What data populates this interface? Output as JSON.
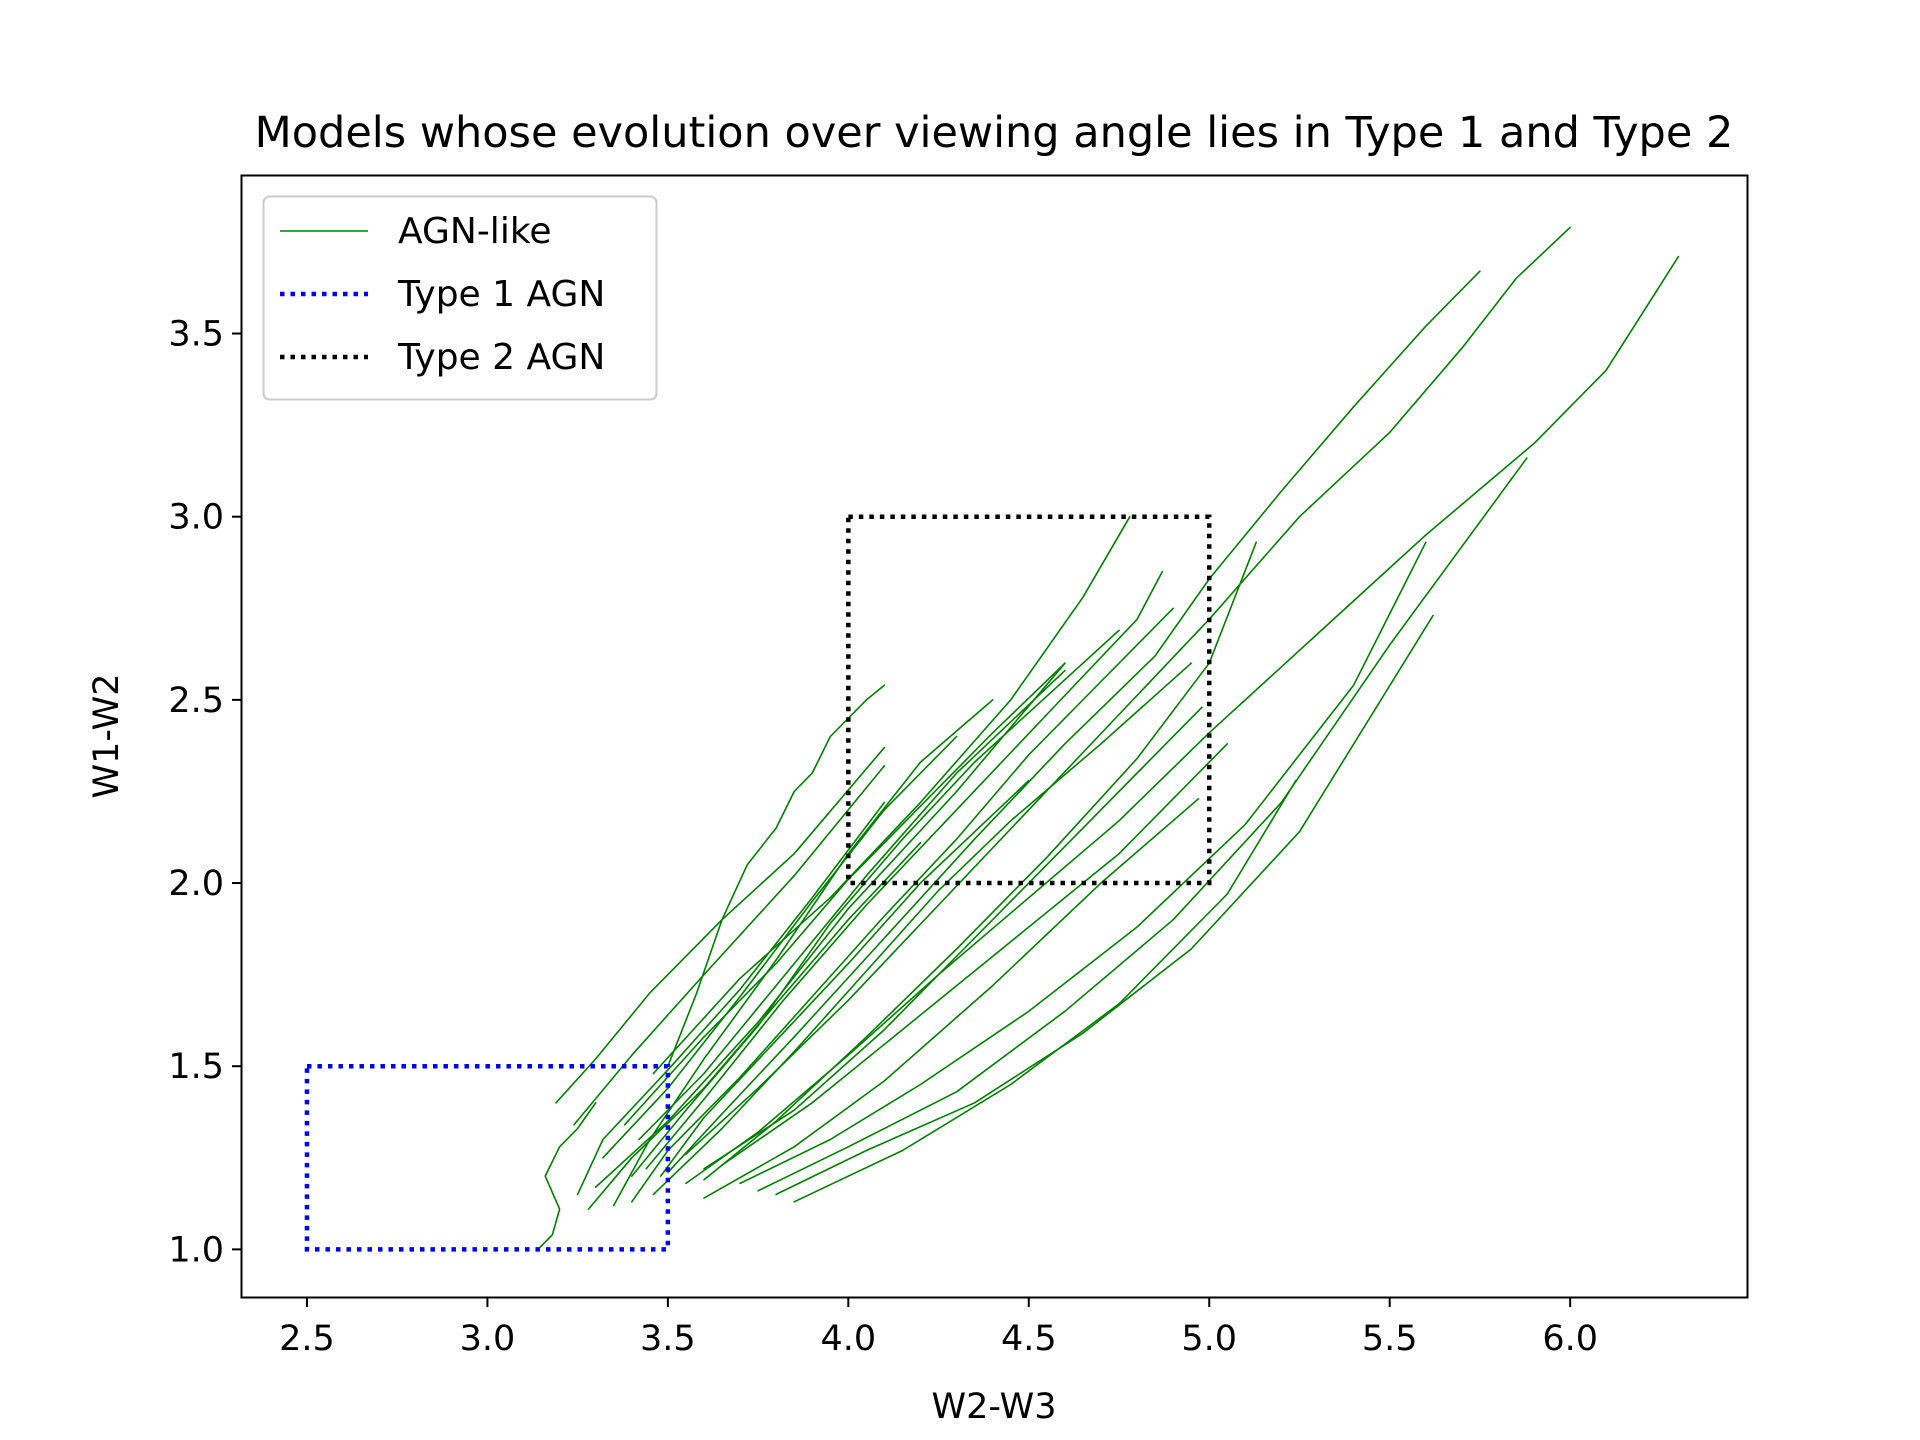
{
  "chart_data": {
    "type": "line",
    "title": "Models whose evolution over viewing angle lies in Type 1 and Type 2",
    "xlabel": "W2-W3",
    "ylabel": "W1-W2",
    "xlim": [
      2.32,
      6.49
    ],
    "ylim": [
      0.87,
      3.93
    ],
    "xticks": [
      2.5,
      3.0,
      3.5,
      4.0,
      4.5,
      5.0,
      5.5,
      6.0
    ],
    "xtick_labels": [
      "2.5",
      "3.0",
      "3.5",
      "4.0",
      "4.5",
      "5.0",
      "5.5",
      "6.0"
    ],
    "yticks": [
      1.0,
      1.5,
      2.0,
      2.5,
      3.0,
      3.5
    ],
    "ytick_labels": [
      "1.0",
      "1.5",
      "2.0",
      "2.5",
      "3.0",
      "3.5"
    ],
    "grid": false,
    "legend_position": "top-left",
    "legend": [
      {
        "label": "AGN-like",
        "color": "#008000",
        "style": "solid"
      },
      {
        "label": "Type 1 AGN",
        "color": "#0000ff",
        "style": "dotted"
      },
      {
        "label": "Type 2 AGN",
        "color": "#000000",
        "style": "dotted"
      }
    ],
    "regions": [
      {
        "name": "Type 1 AGN",
        "color": "#0000ff",
        "x0": 2.5,
        "x1": 3.5,
        "y0": 1.0,
        "y1": 1.5
      },
      {
        "name": "Type 2 AGN",
        "color": "#000000",
        "x0": 4.0,
        "x1": 5.0,
        "y0": 2.0,
        "y1": 3.0
      }
    ],
    "line_color": "#008000",
    "series": [
      {
        "x": [
          3.14,
          3.18,
          3.2,
          3.16,
          3.2,
          3.25,
          3.3
        ],
        "y": [
          1.0,
          1.04,
          1.11,
          1.2,
          1.28,
          1.33,
          1.4
        ]
      },
      {
        "x": [
          3.19,
          3.3,
          3.45,
          3.65,
          3.85,
          4.1
        ],
        "y": [
          1.4,
          1.52,
          1.7,
          1.9,
          2.08,
          2.37
        ]
      },
      {
        "x": [
          3.24,
          3.4,
          3.6,
          3.85,
          4.1
        ],
        "y": [
          1.34,
          1.53,
          1.75,
          2.02,
          2.32
        ]
      },
      {
        "x": [
          3.25,
          3.32,
          3.5,
          3.7,
          3.9,
          4.1
        ],
        "y": [
          1.15,
          1.3,
          1.49,
          1.71,
          1.96,
          2.22
        ]
      },
      {
        "x": [
          3.28,
          3.4,
          3.6,
          3.8,
          4.0,
          4.2
        ],
        "y": [
          1.11,
          1.25,
          1.44,
          1.67,
          1.9,
          2.11
        ]
      },
      {
        "x": [
          3.3,
          3.5,
          3.75,
          4.0,
          4.3,
          4.6
        ],
        "y": [
          1.17,
          1.35,
          1.62,
          1.93,
          2.25,
          2.6
        ]
      },
      {
        "x": [
          3.32,
          3.5,
          3.7,
          3.9,
          4.1,
          4.3
        ],
        "y": [
          1.25,
          1.44,
          1.69,
          1.95,
          2.2,
          2.4
        ]
      },
      {
        "x": [
          3.35,
          3.45,
          3.6,
          3.8,
          4.0,
          4.2,
          4.4
        ],
        "y": [
          1.12,
          1.3,
          1.52,
          1.79,
          2.08,
          2.33,
          2.5
        ]
      },
      {
        "x": [
          3.38,
          3.6,
          3.8,
          4.0,
          4.2,
          4.4,
          4.6
        ],
        "y": [
          1.34,
          1.58,
          1.78,
          2.01,
          2.21,
          2.41,
          2.6
        ]
      },
      {
        "x": [
          3.4,
          3.55,
          3.75,
          3.95,
          4.15,
          4.35,
          4.55,
          4.75
        ],
        "y": [
          1.2,
          1.38,
          1.61,
          1.89,
          2.12,
          2.33,
          2.51,
          2.69
        ]
      },
      {
        "x": [
          3.42,
          3.6,
          3.8,
          4.05,
          4.3,
          4.6
        ],
        "y": [
          1.3,
          1.48,
          1.72,
          2.02,
          2.3,
          2.58
        ]
      },
      {
        "x": [
          3.44,
          3.6,
          3.82,
          4.05,
          4.3,
          4.55,
          4.8,
          4.87
        ],
        "y": [
          1.22,
          1.41,
          1.68,
          1.94,
          2.2,
          2.46,
          2.72,
          2.85
        ]
      },
      {
        "x": [
          3.46,
          3.7,
          3.95,
          4.2,
          4.45,
          4.65,
          4.78
        ],
        "y": [
          1.48,
          1.74,
          1.96,
          2.22,
          2.5,
          2.78,
          3.0
        ]
      },
      {
        "x": [
          3.5,
          3.58,
          3.65,
          3.72,
          3.8,
          3.85,
          3.9,
          3.95,
          4.05,
          4.1
        ],
        "y": [
          1.5,
          1.7,
          1.9,
          2.05,
          2.15,
          2.25,
          2.3,
          2.4,
          2.5,
          2.54
        ]
      },
      {
        "x": [
          3.4,
          3.5,
          3.7,
          3.9,
          4.1,
          4.3,
          4.5,
          4.7,
          4.9
        ],
        "y": [
          1.13,
          1.27,
          1.47,
          1.69,
          1.91,
          2.12,
          2.35,
          2.55,
          2.75
        ]
      },
      {
        "x": [
          3.46,
          3.65,
          3.85,
          4.05,
          4.25,
          4.45,
          4.7,
          4.95
        ],
        "y": [
          1.15,
          1.33,
          1.54,
          1.76,
          1.98,
          2.17,
          2.38,
          2.6
        ]
      },
      {
        "x": [
          3.48,
          3.6,
          3.8,
          4.0,
          4.2,
          4.5
        ],
        "y": [
          1.2,
          1.36,
          1.57,
          1.78,
          2.0,
          2.28
        ]
      },
      {
        "x": [
          3.5,
          3.65,
          3.85,
          4.1,
          4.35,
          4.6,
          4.85,
          5.0,
          5.2,
          5.4,
          5.6,
          5.75
        ],
        "y": [
          1.21,
          1.37,
          1.58,
          1.85,
          2.12,
          2.38,
          2.62,
          2.83,
          3.07,
          3.3,
          3.52,
          3.67
        ]
      },
      {
        "x": [
          3.55,
          3.75,
          4.0,
          4.25,
          4.5,
          4.75,
          5.0,
          5.25,
          5.5,
          5.7,
          5.85,
          6.0
        ],
        "y": [
          1.26,
          1.44,
          1.68,
          1.94,
          2.2,
          2.46,
          2.72,
          3.0,
          3.23,
          3.46,
          3.65,
          3.79
        ]
      },
      {
        "x": [
          3.55,
          3.75,
          4.0,
          4.25,
          4.5,
          4.75,
          5.0,
          5.3,
          5.6,
          5.9,
          6.1,
          6.3
        ],
        "y": [
          1.18,
          1.32,
          1.53,
          1.75,
          1.96,
          2.17,
          2.41,
          2.68,
          2.95,
          3.2,
          3.4,
          3.71
        ]
      },
      {
        "x": [
          3.6,
          3.8,
          4.05,
          4.3,
          4.55,
          4.8,
          5.0,
          5.13
        ],
        "y": [
          1.19,
          1.35,
          1.58,
          1.82,
          2.07,
          2.34,
          2.6,
          2.93
        ]
      },
      {
        "x": [
          3.6,
          3.85,
          4.1,
          4.4,
          4.7,
          4.97
        ],
        "y": [
          1.14,
          1.28,
          1.46,
          1.72,
          2.0,
          2.23
        ]
      },
      {
        "x": [
          3.6,
          3.85,
          4.1,
          4.35,
          4.6,
          4.85,
          4.98
        ],
        "y": [
          1.22,
          1.38,
          1.6,
          1.85,
          2.1,
          2.35,
          2.48
        ]
      },
      {
        "x": [
          3.65,
          3.9,
          4.15,
          4.45,
          4.75,
          5.05
        ],
        "y": [
          1.23,
          1.4,
          1.6,
          1.84,
          2.08,
          2.38
        ]
      },
      {
        "x": [
          3.7,
          3.95,
          4.2,
          4.5,
          4.8,
          5.1,
          5.4,
          5.6
        ],
        "y": [
          1.18,
          1.3,
          1.45,
          1.65,
          1.88,
          2.16,
          2.54,
          2.93
        ]
      },
      {
        "x": [
          3.75,
          4.0,
          4.3,
          4.6,
          4.9,
          5.2,
          5.5,
          5.88
        ],
        "y": [
          1.16,
          1.28,
          1.43,
          1.65,
          1.9,
          2.22,
          2.65,
          3.16
        ]
      },
      {
        "x": [
          3.8,
          4.05,
          4.35,
          4.65,
          4.95,
          5.25,
          5.62
        ],
        "y": [
          1.15,
          1.27,
          1.4,
          1.59,
          1.82,
          2.14,
          2.73
        ]
      },
      {
        "x": [
          3.85,
          4.15,
          4.45,
          4.75,
          5.05,
          5.24
        ],
        "y": [
          1.13,
          1.27,
          1.45,
          1.67,
          1.97,
          2.28
        ]
      }
    ]
  }
}
